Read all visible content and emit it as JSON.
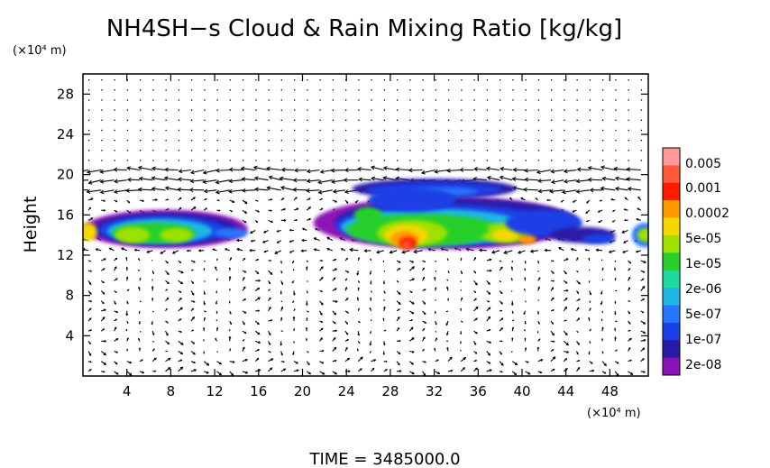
{
  "chart_data": {
    "type": "heatmap",
    "title": "NH4SH−s Cloud & Rain Mixing Ratio [kg/kg]",
    "ylabel": "Height",
    "y_unit": "(×10⁴ m)",
    "x_unit": "(×10⁴ m)",
    "xlim": [
      0,
      51.5
    ],
    "ylim": [
      0,
      30
    ],
    "xticks": [
      4,
      8,
      12,
      16,
      20,
      24,
      28,
      32,
      36,
      40,
      44,
      48
    ],
    "yticks": [
      4,
      8,
      12,
      16,
      20,
      24,
      28
    ],
    "time_label": "TIME = 3485000.0",
    "colorbar": {
      "labels": [
        "0.005",
        "0.001",
        "0.0002",
        "5e-05",
        "1e-05",
        "2e-06",
        "5e-07",
        "1e-07",
        "2e-08"
      ],
      "colors": [
        "#ff9999",
        "#ff5a3c",
        "#ff1a00",
        "#ff9a00",
        "#f5d800",
        "#9ee000",
        "#28cf2c",
        "#1ed9a0",
        "#1fb8e6",
        "#2577ff",
        "#1a3fe6",
        "#2a1aa8",
        "#8b12b5"
      ]
    },
    "cloud_regions": [
      {
        "x": [
          0,
          15
        ],
        "y": [
          12.5,
          17
        ]
      },
      {
        "x": [
          21,
          51.5
        ],
        "y": [
          12,
          19.5
        ]
      }
    ],
    "wind_vectors": "quiver field over full domain"
  }
}
